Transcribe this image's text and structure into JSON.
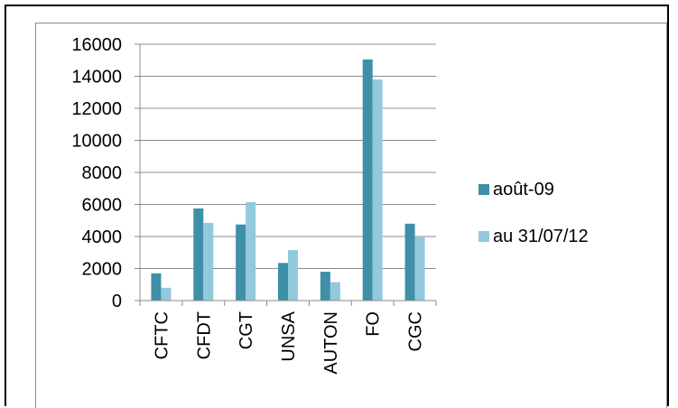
{
  "chart_data": {
    "type": "bar",
    "categories": [
      "CFTC",
      "CFDT",
      "CGT",
      "UNSA",
      "AUTON",
      "FO",
      "CGC"
    ],
    "series": [
      {
        "name": "août-09",
        "values": [
          1700,
          5750,
          4750,
          2350,
          1800,
          15050,
          4800
        ],
        "color": "#3e8fa7"
      },
      {
        "name": "au 31/07/12",
        "values": [
          800,
          4850,
          6150,
          3150,
          1150,
          13800,
          3950
        ],
        "color": "#93c9dc"
      }
    ],
    "ylim": [
      0,
      16000
    ],
    "yticks": [
      0,
      2000,
      4000,
      6000,
      8000,
      10000,
      12000,
      14000,
      16000
    ],
    "grid": true,
    "legend_position": "right"
  }
}
